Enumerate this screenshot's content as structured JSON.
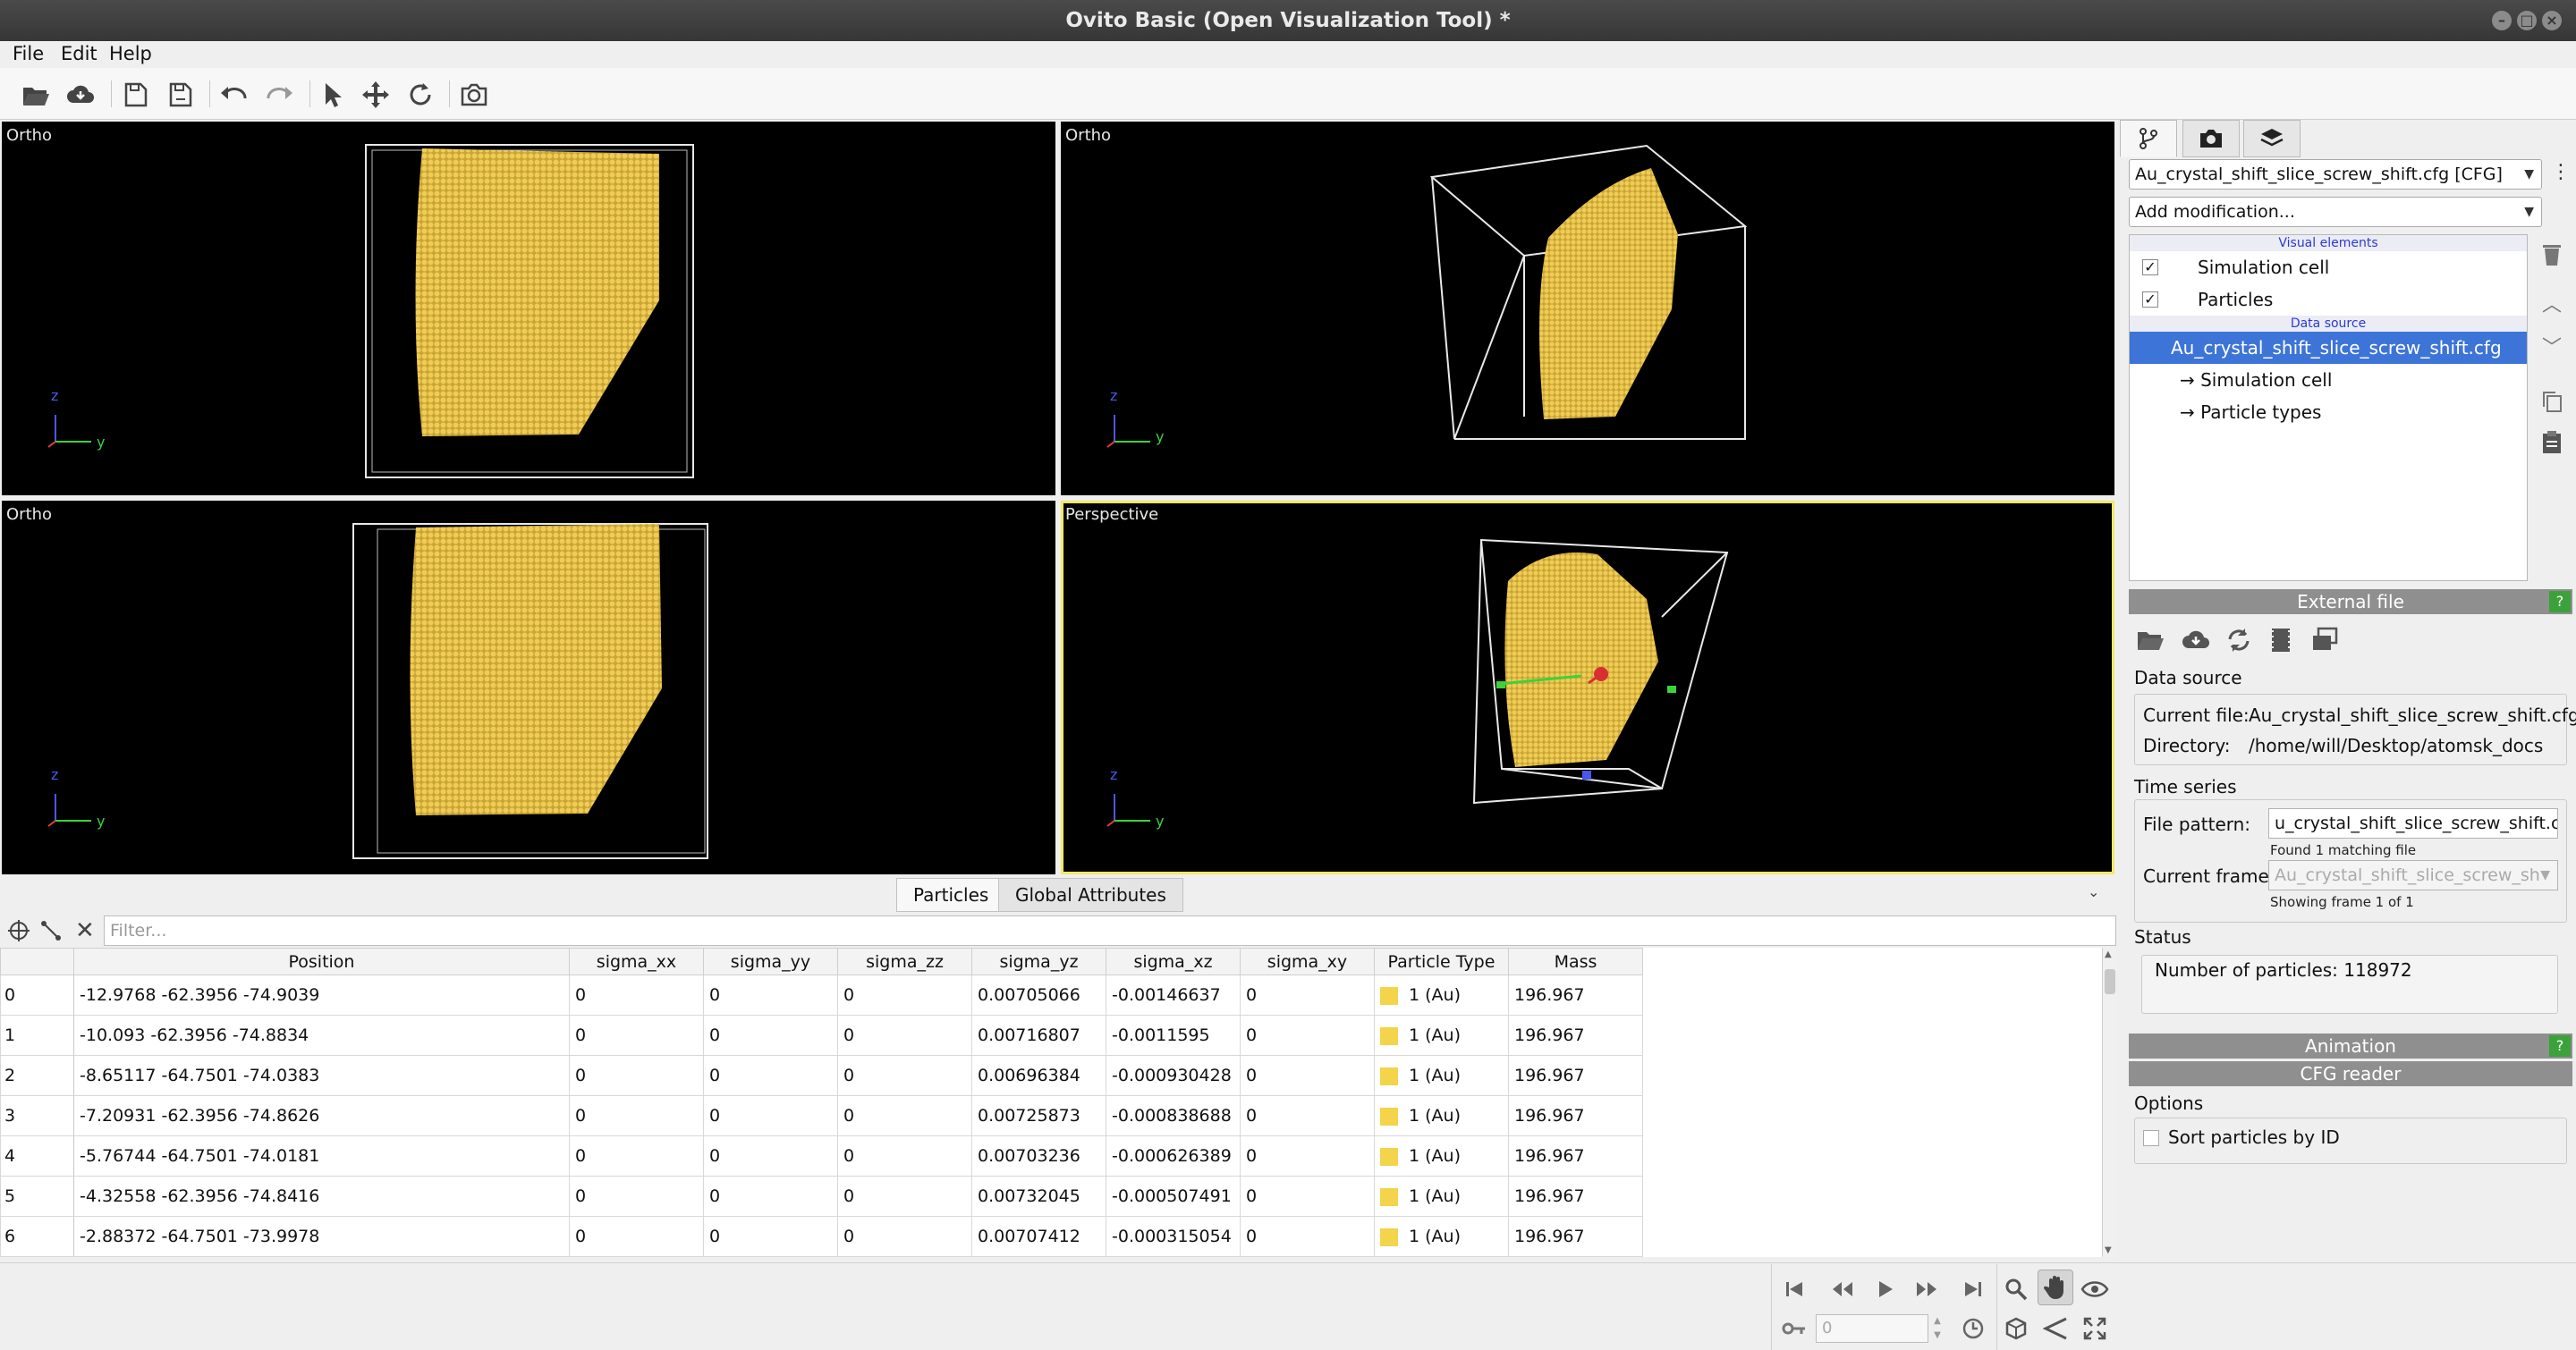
{
  "window": {
    "title": "Ovito Basic (Open Visualization Tool) *"
  },
  "menu": [
    "File",
    "Edit",
    "Help"
  ],
  "toolbar_icons": [
    "open-file-icon",
    "download-cloud-icon",
    "save-session-icon",
    "save-session-as-icon",
    "undo-icon",
    "redo-icon",
    "select-mode-icon",
    "move-mode-icon",
    "rotate-mode-icon",
    "render-camera-icon"
  ],
  "viewports": [
    {
      "label": "Ortho",
      "view": "top-left"
    },
    {
      "label": "Ortho",
      "view": "top-right"
    },
    {
      "label": "Ortho",
      "view": "bottom-left"
    },
    {
      "label": "Perspective",
      "view": "bottom-right",
      "active": true
    }
  ],
  "axis": {
    "z": "z",
    "y": "y"
  },
  "side": {
    "pipeline_selector": "Au_crystal_shift_slice_screw_shift.cfg [CFG]",
    "add_modification": "Add modification...",
    "visual_elements_header": "Visual elements",
    "visual_elements": [
      {
        "label": "Simulation cell",
        "checked": true
      },
      {
        "label": "Particles",
        "checked": true
      }
    ],
    "data_source_header": "Data source",
    "data_source_item": "Au_crystal_shift_slice_screw_shift.cfg [CFG]",
    "data_source_children": [
      "→ Simulation cell",
      "→ Particle types"
    ]
  },
  "external_file": {
    "title": "External file",
    "help": "?",
    "section_data_source": "Data source",
    "current_file_label": "Current file:",
    "current_file": "Au_crystal_shift_slice_screw_shift.cfg",
    "directory_label": "Directory:",
    "directory": "/home/will/Desktop/atomsk_docs",
    "section_time_series": "Time series",
    "file_pattern_label": "File pattern:",
    "file_pattern": "u_crystal_shift_slice_screw_shift.cfg",
    "found_matching": "Found 1 matching file",
    "current_frame_label": "Current frame:",
    "current_frame": "Au_crystal_shift_slice_screw_sh",
    "showing_frame": "Showing frame 1 of 1",
    "section_status": "Status",
    "status_text": "Number of particles: 118972"
  },
  "animation_rollout": {
    "title": "Animation",
    "help": "?"
  },
  "cfg_reader": {
    "title": "CFG reader",
    "options_label": "Options",
    "sort_label": "Sort particles by ID"
  },
  "inspector": {
    "tabs": [
      "Particles",
      "Global Attributes"
    ],
    "filter_placeholder": "Filter...",
    "columns": [
      "Position",
      "sigma_xx",
      "sigma_yy",
      "sigma_zz",
      "sigma_yz",
      "sigma_xz",
      "sigma_xy",
      "Particle Type",
      "Mass"
    ],
    "rows": [
      [
        "0",
        "-12.9768 -62.3956 -74.9039",
        "0",
        "0",
        "0",
        "0.00705066",
        "-0.00146637",
        "0",
        "1 (Au)",
        "196.967"
      ],
      [
        "1",
        "-10.093 -62.3956 -74.8834",
        "0",
        "0",
        "0",
        "0.00716807",
        "-0.0011595",
        "0",
        "1 (Au)",
        "196.967"
      ],
      [
        "2",
        "-8.65117 -64.7501 -74.0383",
        "0",
        "0",
        "0",
        "0.00696384",
        "-0.000930428",
        "0",
        "1 (Au)",
        "196.967"
      ],
      [
        "3",
        "-7.20931 -62.3956 -74.8626",
        "0",
        "0",
        "0",
        "0.00725873",
        "-0.000838688",
        "0",
        "1 (Au)",
        "196.967"
      ],
      [
        "4",
        "-5.76744 -64.7501 -74.0181",
        "0",
        "0",
        "0",
        "0.00703236",
        "-0.000626389",
        "0",
        "1 (Au)",
        "196.967"
      ],
      [
        "5",
        "-4.32558 -62.3956 -74.8416",
        "0",
        "0",
        "0",
        "0.00732045",
        "-0.000507491",
        "0",
        "1 (Au)",
        "196.967"
      ],
      [
        "6",
        "-2.88372 -64.7501 -73.9978",
        "0",
        "0",
        "0",
        "0.00707412",
        "-0.000315054",
        "0",
        "1 (Au)",
        "196.967"
      ]
    ],
    "particle_color": "#f3d44a"
  },
  "animation": {
    "frame_value": "0"
  },
  "colors": {
    "particles": "#e8c24a",
    "active_viewport": "#f1e86b",
    "selection": "#3d74d8"
  }
}
